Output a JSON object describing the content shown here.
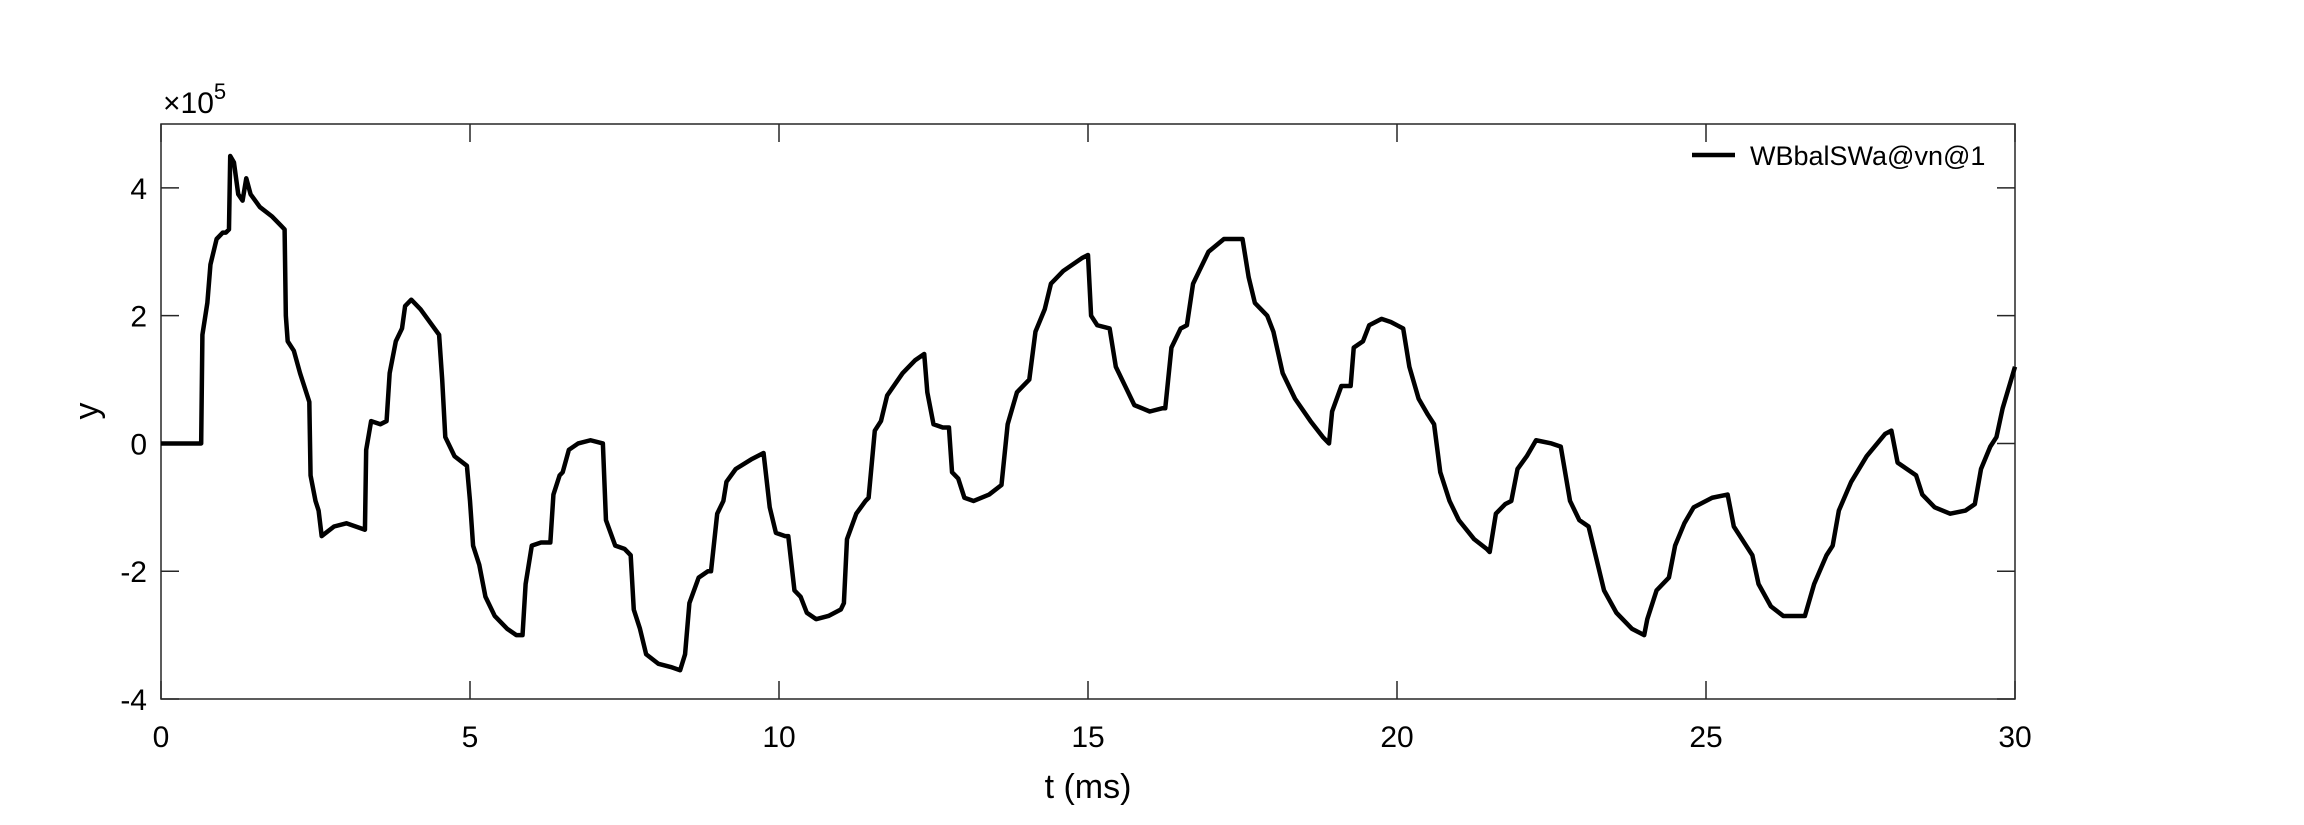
{
  "chart_data": {
    "type": "line",
    "xlabel": "t (ms)",
    "ylabel": "y",
    "y_multiplier_base": "×10",
    "y_multiplier_exponent": "5",
    "xlim": [
      0,
      30
    ],
    "ylim": [
      -4,
      5
    ],
    "xticks": [
      0,
      5,
      10,
      15,
      20,
      25,
      30
    ],
    "yticks": [
      -4,
      -2,
      0,
      2,
      4
    ],
    "legend": "upper right",
    "series": [
      {
        "name": "WBbalSWa@vn@1",
        "color": "#000000",
        "x": [
          0,
          0.65,
          0.67,
          0.75,
          0.8,
          0.9,
          1.0,
          1.05,
          1.1,
          1.12,
          1.18,
          1.25,
          1.32,
          1.38,
          1.45,
          1.6,
          1.8,
          1.95,
          2.0,
          2.02,
          2.05,
          2.15,
          2.25,
          2.35,
          2.4,
          2.42,
          2.5,
          2.55,
          2.6,
          2.8,
          3.0,
          3.15,
          3.3,
          3.32,
          3.4,
          3.55,
          3.65,
          3.7,
          3.8,
          3.9,
          3.95,
          4.05,
          4.2,
          4.35,
          4.5,
          4.55,
          4.6,
          4.75,
          4.95,
          5.0,
          5.05,
          5.15,
          5.25,
          5.4,
          5.6,
          5.75,
          5.85,
          5.9,
          6.0,
          6.15,
          6.3,
          6.35,
          6.45,
          6.5,
          6.6,
          6.75,
          6.95,
          7.15,
          7.2,
          7.35,
          7.5,
          7.6,
          7.65,
          7.75,
          7.85,
          8.05,
          8.25,
          8.4,
          8.48,
          8.55,
          8.7,
          8.85,
          8.9,
          9.0,
          9.1,
          9.15,
          9.3,
          9.55,
          9.75,
          9.85,
          9.95,
          10.1,
          10.15,
          10.25,
          10.35,
          10.45,
          10.6,
          10.8,
          11.0,
          11.05,
          11.1,
          11.25,
          11.4,
          11.45,
          11.55,
          11.65,
          11.75,
          12.0,
          12.2,
          12.35,
          12.4,
          12.5,
          12.65,
          12.75,
          12.8,
          12.9,
          13.0,
          13.15,
          13.4,
          13.6,
          13.7,
          13.85,
          14.05,
          14.15,
          14.3,
          14.4,
          14.6,
          14.9,
          15.0,
          15.05,
          15.15,
          15.35,
          15.45,
          15.6,
          15.75,
          16.0,
          16.2,
          16.25,
          16.35,
          16.5,
          16.6,
          16.7,
          16.8,
          16.95,
          17.2,
          17.5,
          17.6,
          17.7,
          17.9,
          18.0,
          18.15,
          18.35,
          18.6,
          18.8,
          18.9,
          18.95,
          19.1,
          19.25,
          19.3,
          19.45,
          19.55,
          19.75,
          19.9,
          20.1,
          20.2,
          20.35,
          20.5,
          20.6,
          20.7,
          20.85,
          21.0,
          21.25,
          21.45,
          21.5,
          21.6,
          21.75,
          21.85,
          21.95,
          22.1,
          22.25,
          22.5,
          22.65,
          22.8,
          22.95,
          23.1,
          23.2,
          23.35,
          23.55,
          23.8,
          24.0,
          24.05,
          24.2,
          24.4,
          24.5,
          24.65,
          24.8,
          25.1,
          25.35,
          25.45,
          25.65,
          25.75,
          25.85,
          26.05,
          26.25,
          26.6,
          26.75,
          26.95,
          27.05,
          27.15,
          27.35,
          27.6,
          27.9,
          28.0,
          28.1,
          28.25,
          28.4,
          28.5,
          28.7,
          28.95,
          29.2,
          29.35,
          29.45,
          29.6,
          29.7,
          29.8,
          30.0
        ],
        "values": [
          0,
          0,
          1.7,
          2.2,
          2.8,
          3.2,
          3.3,
          3.3,
          3.35,
          4.5,
          4.4,
          3.9,
          3.8,
          4.15,
          3.9,
          3.7,
          3.55,
          3.4,
          3.35,
          2.0,
          1.6,
          1.45,
          1.1,
          0.8,
          0.65,
          -0.5,
          -0.9,
          -1.05,
          -1.45,
          -1.3,
          -1.25,
          -1.3,
          -1.35,
          -0.1,
          0.35,
          0.3,
          0.35,
          1.1,
          1.6,
          1.8,
          2.15,
          2.25,
          2.1,
          1.9,
          1.7,
          1.0,
          0.1,
          -0.2,
          -0.35,
          -0.9,
          -1.6,
          -1.9,
          -2.4,
          -2.7,
          -2.9,
          -3.0,
          -3.0,
          -2.2,
          -1.6,
          -1.55,
          -1.55,
          -0.8,
          -0.5,
          -0.45,
          -0.1,
          0,
          0.05,
          0,
          -1.2,
          -1.6,
          -1.65,
          -1.75,
          -2.6,
          -2.9,
          -3.3,
          -3.45,
          -3.5,
          -3.55,
          -3.3,
          -2.5,
          -2.1,
          -2.0,
          -2.0,
          -1.1,
          -0.9,
          -0.6,
          -0.4,
          -0.25,
          -0.15,
          -1.0,
          -1.4,
          -1.45,
          -1.45,
          -2.3,
          -2.4,
          -2.65,
          -2.75,
          -2.7,
          -2.6,
          -2.5,
          -1.5,
          -1.1,
          -0.9,
          -0.85,
          0.2,
          0.35,
          0.75,
          1.1,
          1.3,
          1.4,
          0.8,
          0.3,
          0.25,
          0.25,
          -0.45,
          -0.55,
          -0.85,
          -0.9,
          -0.8,
          -0.65,
          0.3,
          0.8,
          1.0,
          1.75,
          2.1,
          2.5,
          2.7,
          2.9,
          2.95,
          2.0,
          1.85,
          1.8,
          1.2,
          0.9,
          0.6,
          0.5,
          0.55,
          0.55,
          1.5,
          1.8,
          1.85,
          2.5,
          2.7,
          3.0,
          3.2,
          3.2,
          2.6,
          2.2,
          2.0,
          1.75,
          1.1,
          0.7,
          0.35,
          0.1,
          0,
          0.5,
          0.9,
          0.9,
          1.5,
          1.6,
          1.85,
          1.95,
          1.9,
          1.8,
          1.2,
          0.7,
          0.45,
          0.3,
          -0.45,
          -0.9,
          -1.2,
          -1.5,
          -1.65,
          -1.7,
          -1.1,
          -0.95,
          -0.9,
          -0.4,
          -0.2,
          0.05,
          0,
          -0.05,
          -0.9,
          -1.2,
          -1.3,
          -1.7,
          -2.3,
          -2.65,
          -2.9,
          -3.0,
          -2.75,
          -2.3,
          -2.1,
          -1.6,
          -1.25,
          -1.0,
          -0.85,
          -0.8,
          -1.3,
          -1.6,
          -1.75,
          -2.2,
          -2.55,
          -2.7,
          -2.7,
          -2.2,
          -1.75,
          -1.6,
          -1.05,
          -0.6,
          -0.2,
          0.15,
          0.2,
          -0.3,
          -0.4,
          -0.5,
          -0.8,
          -1.0,
          -1.1,
          -1.05,
          -0.95,
          -0.4,
          -0.05,
          0.1,
          0.55,
          1.2
        ]
      }
    ]
  }
}
